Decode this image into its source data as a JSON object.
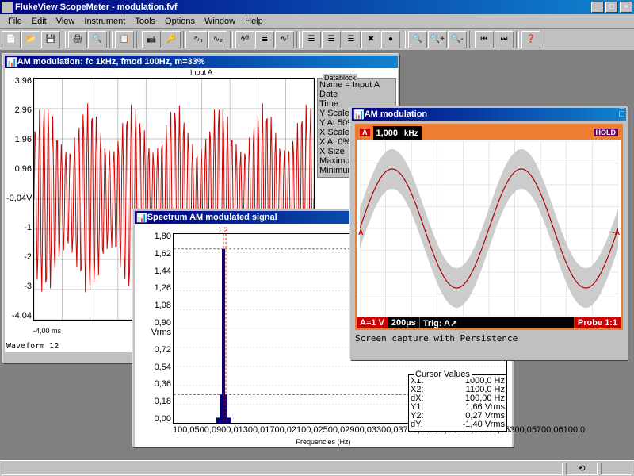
{
  "app": {
    "title": "FlukeView ScopeMeter - modulation.fvf",
    "menus": [
      "File",
      "Edit",
      "View",
      "Instrument",
      "Tools",
      "Options",
      "Window",
      "Help"
    ]
  },
  "toolbar_icons": [
    "📄",
    "📂",
    "💾",
    "|",
    "🖨",
    "🔍",
    "|",
    "📋",
    "|",
    "📷",
    "🔑",
    "|",
    "∿₁",
    "∿₂",
    "|",
    "ᴬ⁄ᴮ",
    "≣",
    "∿ᶠ",
    "|",
    "☰",
    "☰",
    "☰",
    "✖",
    "●",
    "|",
    "🔍",
    "🔍+",
    "🔍-",
    "|",
    "⏮",
    "⏭",
    "|",
    "❓"
  ],
  "waveform_window": {
    "title": "AM modulation: fc 1kHz, fmod 100Hz, m=33%",
    "header": "Input A",
    "y_ticks": [
      "3,96",
      "2,96",
      "1,96",
      "0,96",
      "-0,04V",
      "-1",
      "-2",
      "-3",
      "-4,04"
    ],
    "x_label": "-4,00 ms",
    "footer": "Waveform 12",
    "datablock": {
      "title": "Datablock",
      "rows": [
        "Name    = Input A",
        "Date",
        "Time",
        "Y Scale",
        "Y At 50%",
        "X Scale",
        "X At 0%",
        "X Size",
        "Maximum",
        "Minimum"
      ]
    },
    "wave_color": "#cc0000",
    "grid_color": "#000000"
  },
  "spectrum_window": {
    "title": "Spectrum  AM modulated signal",
    "header": "Input A",
    "y_ticks": [
      "1,80",
      "1,62",
      "1,44",
      "1,26",
      "1,08",
      "0,90 Vrms",
      "0,72",
      "0,54",
      "0,36",
      "0,18",
      "0,00"
    ],
    "x_ticks": [
      "100,0",
      "500,0",
      "900,0",
      "1300,0",
      "1700,0",
      "2100,0",
      "2500,0",
      "2900,0",
      "3300,0",
      "3700,0",
      "4100,0",
      "4500,0",
      "4900,0",
      "5300,0",
      "5700,0",
      "6100,0"
    ],
    "x_label": "Frequencies (Hz)",
    "cursor_label": "1 2",
    "bar_color": "#000080",
    "cursor_color": "#cc0000",
    "cursor_values": {
      "title": "Cursor Values",
      "rows": [
        [
          "X1:",
          "1000,0",
          "Hz"
        ],
        [
          "X2:",
          "1100,0",
          "Hz"
        ],
        [
          "dX:",
          "100,00",
          "Hz"
        ],
        [
          "Y1:",
          "1,66",
          "Vrms"
        ],
        [
          "Y2:",
          "0,27",
          "Vrms"
        ],
        [
          "dY:",
          "-1,40",
          "Vrms"
        ]
      ]
    }
  },
  "scope_window": {
    "title": "AM modulation",
    "a_badge": "A",
    "frequency": "1,000",
    "freq_unit": "kHz",
    "hold": "HOLD",
    "bottom": {
      "scale": "A=1 V",
      "timebase": "200µs",
      "trig": "Trig: A↗",
      "probe": "Probe 1:1"
    },
    "caption": "Screen capture with Persistence",
    "trace_color": "#b00000",
    "persist_color": "#cccccc",
    "frame_color": "#ed7d31"
  }
}
